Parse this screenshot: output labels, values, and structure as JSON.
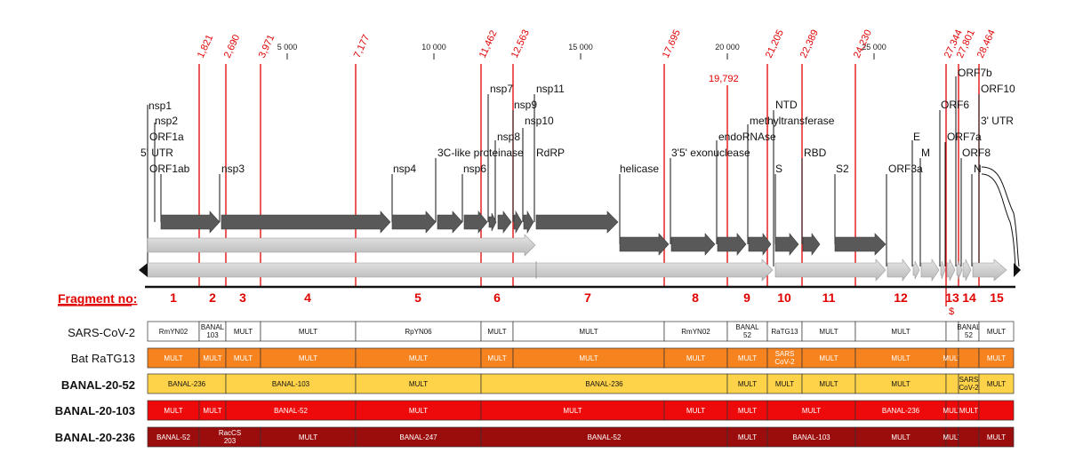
{
  "axis_ticks": [
    "5 000",
    "10 000",
    "15 000",
    "20 000",
    "25 000"
  ],
  "axis_tick_values": [
    5000,
    10000,
    15000,
    20000,
    25000
  ],
  "breakpoints": [
    "1,821",
    "2,690",
    "3,971",
    "7,177",
    "11,462",
    "12,563",
    "17,695",
    "21,205",
    "22,389",
    "24,230",
    "27,344",
    "27,801",
    "28,464"
  ],
  "breakpoint_values": [
    1821,
    2690,
    3971,
    7177,
    11462,
    12563,
    17695,
    21205,
    22389,
    24230,
    27344,
    27801,
    28464
  ],
  "extra_breakpoint": {
    "label": "19,792",
    "value": 19792
  },
  "gene_labels": [
    "nsp1",
    "nsp2",
    "ORF1a",
    "5' UTR",
    "ORF1ab",
    "nsp3",
    "nsp4",
    "3C-like proteinase",
    "nsp6",
    "nsp7",
    "nsp8",
    "nsp9",
    "nsp10",
    "nsp11",
    "RdRP",
    "helicase",
    "3'5' exonuclease",
    "endoRNAse",
    "methyltransferase",
    "NTD",
    "S",
    "RBD",
    "S2",
    "ORF3a",
    "E",
    "M",
    "ORF6",
    "ORF7a",
    "ORF7b",
    "ORF8",
    "N",
    "ORF10",
    "3' UTR"
  ],
  "fragment_title": "Fragment no:",
  "fragments": [
    "1",
    "2",
    "3",
    "4",
    "5",
    "6",
    "7",
    "8",
    "9",
    "10",
    "11",
    "12",
    "13",
    "14",
    "15"
  ],
  "dollar_mark": "$",
  "rows": [
    {
      "name": "SARS-CoV-2",
      "bold": false,
      "color": "#ffffff",
      "text_color": "#111111",
      "cells": [
        "RmYN02",
        "BANAL\n103",
        "MULT",
        "MULT",
        "RpYN06",
        "MULT",
        "MULT",
        "RmYN02",
        "BANAL\n52",
        "RaTG13",
        "MULT",
        "MULT",
        "",
        "BANAL\n52",
        "MULT"
      ]
    },
    {
      "name": "Bat RaTG13",
      "bold": false,
      "color": "#f7831f",
      "text_color": "#ffffff",
      "cells": [
        "MULT",
        "MULT",
        "MULT",
        "MULT",
        "MULT",
        "MULT",
        "MULT",
        "MULT",
        "MULT",
        "SARS\nCoV-2",
        "MULT",
        "MULT",
        "MULT",
        "",
        "MULT"
      ]
    },
    {
      "name": "BANAL-20-52",
      "bold": true,
      "color": "#fed34a",
      "text_color": "#111111",
      "cells": [
        "BANAL-236",
        "BANAL-103",
        "MULT",
        "BANAL-236",
        "MULT",
        "MULT",
        "MULT",
        "MULT",
        "",
        "SARS\nCoV-2",
        "MULT"
      ]
    },
    {
      "name": "BANAL-20-103",
      "bold": true,
      "color": "#ee0a0a",
      "text_color": "#ffffff",
      "cells": [
        "MULT",
        "MULT",
        "BANAL-52",
        "MULT",
        "MULT",
        "MULT",
        "MULT",
        "MULT",
        "BANAL-236",
        "MULT",
        "MULT",
        "",
        "MULT"
      ]
    },
    {
      "name": "BANAL-20-236",
      "bold": true,
      "color": "#9b0d0d",
      "text_color": "#ffffff",
      "cells": [
        "BANAL-52",
        "RacCS\n203",
        "MULT",
        "BANAL-247",
        "BANAL-52",
        "MULT",
        "BANAL-103",
        "MULT",
        "MULT",
        "",
        "MULT"
      ]
    }
  ],
  "colors": {
    "red": "#e00000",
    "dark_arrow": "#595959",
    "light_arrow": "#c8c8c8"
  }
}
